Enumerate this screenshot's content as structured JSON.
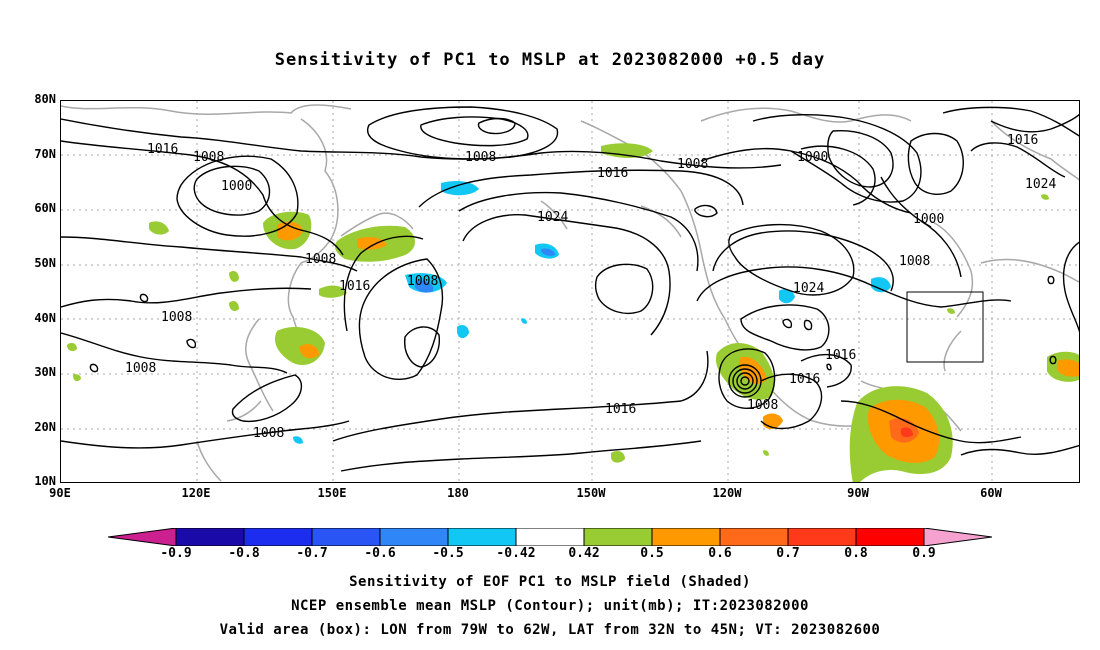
{
  "title": "Sensitivity of PC1 to MSLP at 2023082000 +0.5 day",
  "y_ticks": [
    "80N",
    "70N",
    "60N",
    "50N",
    "40N",
    "30N",
    "20N",
    "10N"
  ],
  "x_ticks": [
    "90E",
    "120E",
    "150E",
    "180",
    "150W",
    "120W",
    "90W",
    "60W"
  ],
  "contour_labels": [
    "1016",
    "1008",
    "1000",
    "1008",
    "1016",
    "1008",
    "1000",
    "1016",
    "1024",
    "1024",
    "1000",
    "1008",
    "1024",
    "1008",
    "1016",
    "1008",
    "1008",
    "1016",
    "1016",
    "1008",
    "1008",
    "1016"
  ],
  "colorbar": {
    "labels": [
      "-0.9",
      "-0.8",
      "-0.7",
      "-0.6",
      "-0.5",
      "-0.42",
      "0.42",
      "0.5",
      "0.6",
      "0.7",
      "0.8",
      "0.9"
    ],
    "colors": [
      "#1a0aa8",
      "#1d2df0",
      "#2a55f5",
      "#2f86f7",
      "#13c7f5",
      "#ffffff",
      "#99cc33",
      "#ff9900",
      "#ff6a1a",
      "#ff3a1a",
      "#ff0000"
    ],
    "low_end_color": "#cc1f90",
    "high_end_color": "#f6a2d0"
  },
  "captions": [
    "Sensitivity of EOF PC1 to MSLP field (Shaded)",
    "NCEP ensemble mean MSLP (Contour); unit(mb); IT:2023082000",
    "Valid area (box): LON from 79W to 62W, LAT from 32N to 45N; VT: 2023082600"
  ]
}
